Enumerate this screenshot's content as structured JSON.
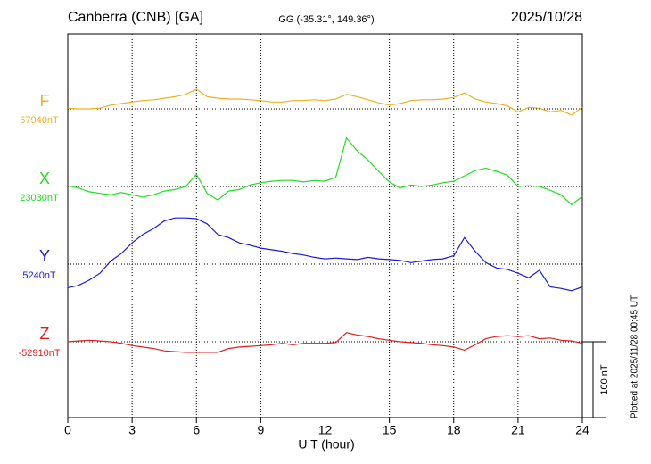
{
  "chart_data": {
    "type": "line",
    "title": "Canberra (CNB)  [GA]",
    "subtitle": "GG (-35.31°, 149.36°)",
    "date": "2025/10/28",
    "x_label": "U T (hour)",
    "note": "Plotted at 2025/11/28 00:45 UT",
    "scale_bar": {
      "value": 100,
      "label": "100 nT"
    },
    "xlim": [
      0,
      24
    ],
    "xticks": [
      0,
      3,
      6,
      9,
      12,
      15,
      18,
      21,
      24
    ],
    "grid": true,
    "x": [
      0,
      0.5,
      1,
      1.5,
      2,
      2.5,
      3,
      3.5,
      4,
      4.5,
      5,
      5.5,
      6,
      6.5,
      7,
      7.5,
      8,
      8.5,
      9,
      9.5,
      10,
      10.5,
      11,
      11.5,
      12,
      12.5,
      13,
      13.5,
      14,
      14.5,
      15,
      15.5,
      16,
      16.5,
      17,
      17.5,
      18,
      18.5,
      19,
      19.5,
      20,
      20.5,
      21,
      21.5,
      22,
      22.5,
      23,
      23.5,
      24
    ],
    "series": [
      {
        "name": "F",
        "color": "#f0b020",
        "baseline": {
          "value": 57940,
          "label": "57940nT"
        },
        "values": [
          57941,
          57940,
          57940,
          57941,
          57945,
          57947,
          57949,
          57951,
          57952,
          57954,
          57956,
          57959,
          57966,
          57956,
          57954,
          57953,
          57953,
          57952,
          57951,
          57949,
          57949,
          57951,
          57951,
          57952,
          57951,
          57953,
          57959,
          57956,
          57952,
          57948,
          57945,
          57947,
          57951,
          57952,
          57952,
          57953,
          57955,
          57961,
          57953,
          57949,
          57947,
          57944,
          57936,
          57942,
          57941,
          57936,
          57938,
          57932,
          57942
        ]
      },
      {
        "name": "X",
        "color": "#22dd22",
        "baseline": {
          "value": 23030,
          "label": "23030nT"
        },
        "values": [
          23031,
          23028,
          23023,
          23021,
          23019,
          23022,
          23019,
          23016,
          23019,
          23024,
          23026,
          23030,
          23046,
          23021,
          23012,
          23024,
          23026,
          23032,
          23035,
          23037,
          23038,
          23038,
          23036,
          23038,
          23037,
          23042,
          23094,
          23077,
          23065,
          23050,
          23036,
          23028,
          23032,
          23030,
          23032,
          23035,
          23037,
          23044,
          23051,
          23054,
          23050,
          23045,
          23030,
          23031,
          23030,
          23025,
          23019,
          23006,
          23017
        ]
      },
      {
        "name": "Y",
        "color": "#1a1adc",
        "baseline": {
          "value": 5240,
          "label": "5240nT"
        },
        "values": [
          5209,
          5212,
          5219,
          5228,
          5244,
          5254,
          5268,
          5279,
          5287,
          5297,
          5301,
          5301,
          5300,
          5293,
          5279,
          5275,
          5268,
          5265,
          5261,
          5259,
          5257,
          5254,
          5252,
          5249,
          5247,
          5248,
          5247,
          5246,
          5249,
          5247,
          5246,
          5245,
          5242,
          5244,
          5246,
          5247,
          5251,
          5275,
          5257,
          5242,
          5235,
          5233,
          5228,
          5222,
          5232,
          5210,
          5208,
          5205,
          5210
        ]
      },
      {
        "name": "Z",
        "color": "#e02020",
        "baseline": {
          "value": -52910,
          "label": "-52910nT"
        },
        "values": [
          -52910,
          -52909,
          -52908,
          -52909,
          -52910,
          -52912,
          -52915,
          -52917,
          -52919,
          -52922,
          -52923,
          -52924,
          -52924,
          -52924,
          -52924,
          -52919,
          -52917,
          -52916,
          -52915,
          -52914,
          -52912,
          -52914,
          -52912,
          -52912,
          -52912,
          -52911,
          -52898,
          -52901,
          -52903,
          -52906,
          -52908,
          -52910,
          -52911,
          -52912,
          -52914,
          -52915,
          -52917,
          -52921,
          -52914,
          -52906,
          -52903,
          -52902,
          -52903,
          -52902,
          -52906,
          -52905,
          -52908,
          -52909,
          -52912
        ]
      }
    ]
  }
}
